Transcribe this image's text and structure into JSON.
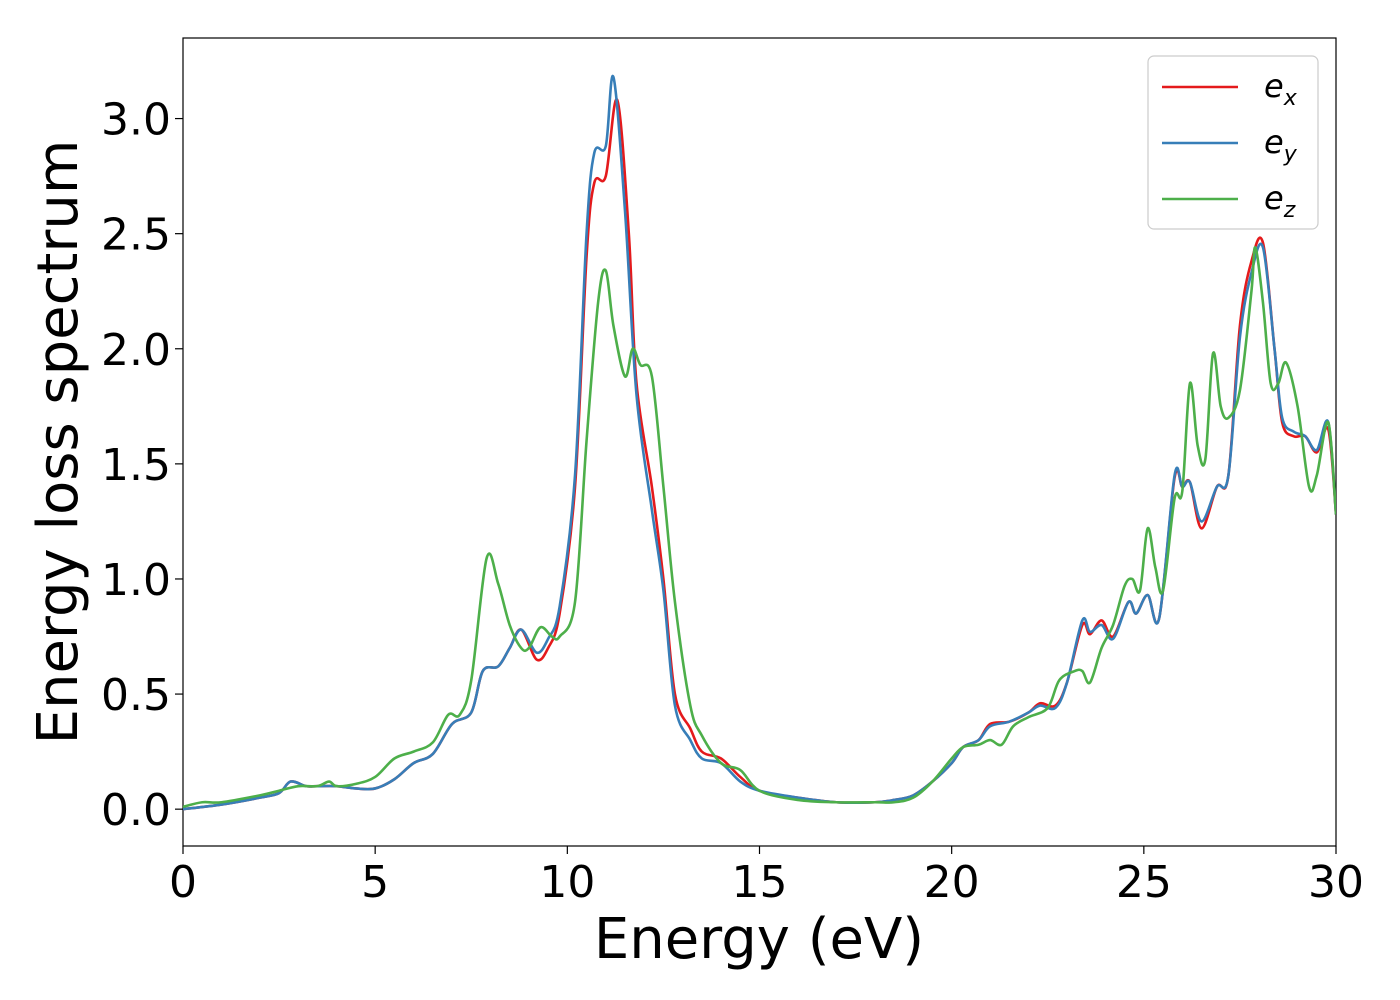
{
  "chart_data": {
    "type": "line",
    "title": "",
    "xlabel": "Energy (eV)",
    "ylabel": "Energy loss spectrum",
    "xlim": [
      0,
      30
    ],
    "ylim": [
      -0.16,
      3.35
    ],
    "xticks": [
      0,
      5,
      10,
      15,
      20,
      25,
      30
    ],
    "xtick_labels": [
      "0",
      "5",
      "10",
      "15",
      "20",
      "25",
      "30"
    ],
    "yticks": [
      0.0,
      0.5,
      1.0,
      1.5,
      2.0,
      2.5,
      3.0
    ],
    "ytick_labels": [
      "0.0",
      "0.5",
      "1.0",
      "1.5",
      "2.0",
      "2.5",
      "3.0"
    ],
    "grid": false,
    "legend_position": "top-right",
    "series": [
      {
        "name": "e_x",
        "label_base": "e",
        "label_sub": "x",
        "color": "#e41a1c",
        "points": [
          [
            0,
            0
          ],
          [
            1,
            0.02
          ],
          [
            2,
            0.05
          ],
          [
            2.5,
            0.07
          ],
          [
            2.8,
            0.12
          ],
          [
            3.2,
            0.1
          ],
          [
            3.5,
            0.1
          ],
          [
            4,
            0.1
          ],
          [
            4.5,
            0.09
          ],
          [
            5,
            0.09
          ],
          [
            5.5,
            0.13
          ],
          [
            6,
            0.2
          ],
          [
            6.5,
            0.24
          ],
          [
            7,
            0.37
          ],
          [
            7.5,
            0.42
          ],
          [
            7.8,
            0.6
          ],
          [
            8.2,
            0.62
          ],
          [
            8.5,
            0.7
          ],
          [
            8.8,
            0.78
          ],
          [
            9.2,
            0.65
          ],
          [
            9.5,
            0.7
          ],
          [
            9.8,
            0.85
          ],
          [
            10.2,
            1.4
          ],
          [
            10.5,
            2.4
          ],
          [
            10.7,
            2.72
          ],
          [
            11,
            2.75
          ],
          [
            11.3,
            3.08
          ],
          [
            11.6,
            2.5
          ],
          [
            11.8,
            1.85
          ],
          [
            12.2,
            1.4
          ],
          [
            12.5,
            1.0
          ],
          [
            12.8,
            0.5
          ],
          [
            13.2,
            0.35
          ],
          [
            13.5,
            0.25
          ],
          [
            14,
            0.22
          ],
          [
            14.5,
            0.14
          ],
          [
            15,
            0.08
          ],
          [
            16,
            0.05
          ],
          [
            17,
            0.03
          ],
          [
            18,
            0.03
          ],
          [
            18.5,
            0.04
          ],
          [
            19,
            0.06
          ],
          [
            19.5,
            0.12
          ],
          [
            20,
            0.2
          ],
          [
            20.3,
            0.27
          ],
          [
            20.7,
            0.3
          ],
          [
            21,
            0.37
          ],
          [
            21.5,
            0.38
          ],
          [
            22,
            0.42
          ],
          [
            22.3,
            0.46
          ],
          [
            22.7,
            0.45
          ],
          [
            23,
            0.55
          ],
          [
            23.4,
            0.8
          ],
          [
            23.6,
            0.76
          ],
          [
            23.9,
            0.82
          ],
          [
            24.2,
            0.75
          ],
          [
            24.6,
            0.9
          ],
          [
            24.8,
            0.85
          ],
          [
            25.1,
            0.93
          ],
          [
            25.4,
            0.83
          ],
          [
            25.8,
            1.44
          ],
          [
            26,
            1.4
          ],
          [
            26.2,
            1.42
          ],
          [
            26.5,
            1.22
          ],
          [
            26.9,
            1.4
          ],
          [
            27.2,
            1.45
          ],
          [
            27.5,
            2.1
          ],
          [
            27.8,
            2.38
          ],
          [
            28.1,
            2.46
          ],
          [
            28.4,
            2.0
          ],
          [
            28.6,
            1.68
          ],
          [
            28.9,
            1.62
          ],
          [
            29.2,
            1.62
          ],
          [
            29.5,
            1.55
          ],
          [
            29.8,
            1.65
          ],
          [
            30,
            1.28
          ]
        ]
      },
      {
        "name": "e_y",
        "label_base": "e",
        "label_sub": "y",
        "color": "#377eb8",
        "points": [
          [
            0,
            0
          ],
          [
            1,
            0.02
          ],
          [
            2,
            0.05
          ],
          [
            2.5,
            0.07
          ],
          [
            2.8,
            0.12
          ],
          [
            3.2,
            0.1
          ],
          [
            3.5,
            0.1
          ],
          [
            4,
            0.1
          ],
          [
            4.5,
            0.09
          ],
          [
            5,
            0.09
          ],
          [
            5.5,
            0.13
          ],
          [
            6,
            0.2
          ],
          [
            6.5,
            0.24
          ],
          [
            7,
            0.37
          ],
          [
            7.5,
            0.42
          ],
          [
            7.8,
            0.6
          ],
          [
            8.2,
            0.62
          ],
          [
            8.5,
            0.7
          ],
          [
            8.8,
            0.78
          ],
          [
            9.2,
            0.68
          ],
          [
            9.5,
            0.74
          ],
          [
            9.8,
            0.88
          ],
          [
            10.2,
            1.45
          ],
          [
            10.5,
            2.5
          ],
          [
            10.7,
            2.85
          ],
          [
            11,
            2.88
          ],
          [
            11.2,
            3.18
          ],
          [
            11.5,
            2.6
          ],
          [
            11.8,
            1.8
          ],
          [
            12.2,
            1.3
          ],
          [
            12.5,
            0.95
          ],
          [
            12.8,
            0.45
          ],
          [
            13.2,
            0.3
          ],
          [
            13.5,
            0.22
          ],
          [
            14,
            0.2
          ],
          [
            14.5,
            0.12
          ],
          [
            15,
            0.08
          ],
          [
            16,
            0.05
          ],
          [
            17,
            0.03
          ],
          [
            18,
            0.03
          ],
          [
            18.5,
            0.04
          ],
          [
            19,
            0.06
          ],
          [
            19.5,
            0.12
          ],
          [
            20,
            0.2
          ],
          [
            20.3,
            0.27
          ],
          [
            20.7,
            0.3
          ],
          [
            21,
            0.36
          ],
          [
            21.5,
            0.38
          ],
          [
            22,
            0.42
          ],
          [
            22.3,
            0.45
          ],
          [
            22.7,
            0.44
          ],
          [
            23,
            0.55
          ],
          [
            23.4,
            0.82
          ],
          [
            23.6,
            0.77
          ],
          [
            23.9,
            0.8
          ],
          [
            24.2,
            0.74
          ],
          [
            24.6,
            0.9
          ],
          [
            24.8,
            0.85
          ],
          [
            25.1,
            0.93
          ],
          [
            25.4,
            0.83
          ],
          [
            25.8,
            1.45
          ],
          [
            26,
            1.4
          ],
          [
            26.2,
            1.42
          ],
          [
            26.5,
            1.25
          ],
          [
            26.9,
            1.4
          ],
          [
            27.2,
            1.45
          ],
          [
            27.5,
            2.05
          ],
          [
            27.8,
            2.33
          ],
          [
            28.1,
            2.44
          ],
          [
            28.4,
            2.0
          ],
          [
            28.6,
            1.7
          ],
          [
            28.9,
            1.64
          ],
          [
            29.2,
            1.62
          ],
          [
            29.5,
            1.56
          ],
          [
            29.8,
            1.68
          ],
          [
            30,
            1.28
          ]
        ]
      },
      {
        "name": "e_z",
        "label_base": "e",
        "label_sub": "z",
        "color": "#4daf4a",
        "points": [
          [
            0,
            0.01
          ],
          [
            0.5,
            0.03
          ],
          [
            1,
            0.03
          ],
          [
            2,
            0.06
          ],
          [
            2.5,
            0.08
          ],
          [
            3,
            0.1
          ],
          [
            3.5,
            0.1
          ],
          [
            3.8,
            0.12
          ],
          [
            4,
            0.1
          ],
          [
            4.5,
            0.11
          ],
          [
            5,
            0.14
          ],
          [
            5.5,
            0.22
          ],
          [
            6,
            0.25
          ],
          [
            6.5,
            0.29
          ],
          [
            6.9,
            0.41
          ],
          [
            7.2,
            0.41
          ],
          [
            7.5,
            0.56
          ],
          [
            7.9,
            1.09
          ],
          [
            8.2,
            0.98
          ],
          [
            8.5,
            0.8
          ],
          [
            8.8,
            0.7
          ],
          [
            9,
            0.7
          ],
          [
            9.3,
            0.79
          ],
          [
            9.6,
            0.75
          ],
          [
            9.8,
            0.75
          ],
          [
            10.2,
            0.9
          ],
          [
            10.5,
            1.6
          ],
          [
            10.8,
            2.2
          ],
          [
            11,
            2.34
          ],
          [
            11.2,
            2.1
          ],
          [
            11.5,
            1.88
          ],
          [
            11.7,
            2.0
          ],
          [
            11.9,
            1.93
          ],
          [
            12.2,
            1.88
          ],
          [
            12.5,
            1.4
          ],
          [
            12.8,
            0.9
          ],
          [
            13.2,
            0.45
          ],
          [
            13.5,
            0.32
          ],
          [
            14,
            0.2
          ],
          [
            14.5,
            0.17
          ],
          [
            15,
            0.08
          ],
          [
            16,
            0.04
          ],
          [
            17,
            0.03
          ],
          [
            18,
            0.03
          ],
          [
            18.5,
            0.03
          ],
          [
            19,
            0.05
          ],
          [
            19.5,
            0.12
          ],
          [
            20,
            0.22
          ],
          [
            20.3,
            0.27
          ],
          [
            20.7,
            0.28
          ],
          [
            21,
            0.3
          ],
          [
            21.3,
            0.28
          ],
          [
            21.6,
            0.36
          ],
          [
            22,
            0.4
          ],
          [
            22.5,
            0.44
          ],
          [
            22.8,
            0.56
          ],
          [
            23.2,
            0.6
          ],
          [
            23.4,
            0.6
          ],
          [
            23.6,
            0.55
          ],
          [
            23.9,
            0.7
          ],
          [
            24.2,
            0.8
          ],
          [
            24.5,
            0.97
          ],
          [
            24.7,
            1.0
          ],
          [
            24.9,
            0.95
          ],
          [
            25.1,
            1.22
          ],
          [
            25.3,
            1.05
          ],
          [
            25.5,
            0.95
          ],
          [
            25.8,
            1.35
          ],
          [
            26,
            1.38
          ],
          [
            26.2,
            1.85
          ],
          [
            26.4,
            1.58
          ],
          [
            26.6,
            1.52
          ],
          [
            26.8,
            1.98
          ],
          [
            27,
            1.75
          ],
          [
            27.2,
            1.7
          ],
          [
            27.5,
            1.82
          ],
          [
            27.8,
            2.25
          ],
          [
            27.9,
            2.44
          ],
          [
            28.1,
            2.2
          ],
          [
            28.3,
            1.85
          ],
          [
            28.5,
            1.85
          ],
          [
            28.7,
            1.94
          ],
          [
            29,
            1.75
          ],
          [
            29.3,
            1.4
          ],
          [
            29.5,
            1.45
          ],
          [
            29.8,
            1.68
          ],
          [
            30,
            1.28
          ]
        ]
      }
    ]
  }
}
